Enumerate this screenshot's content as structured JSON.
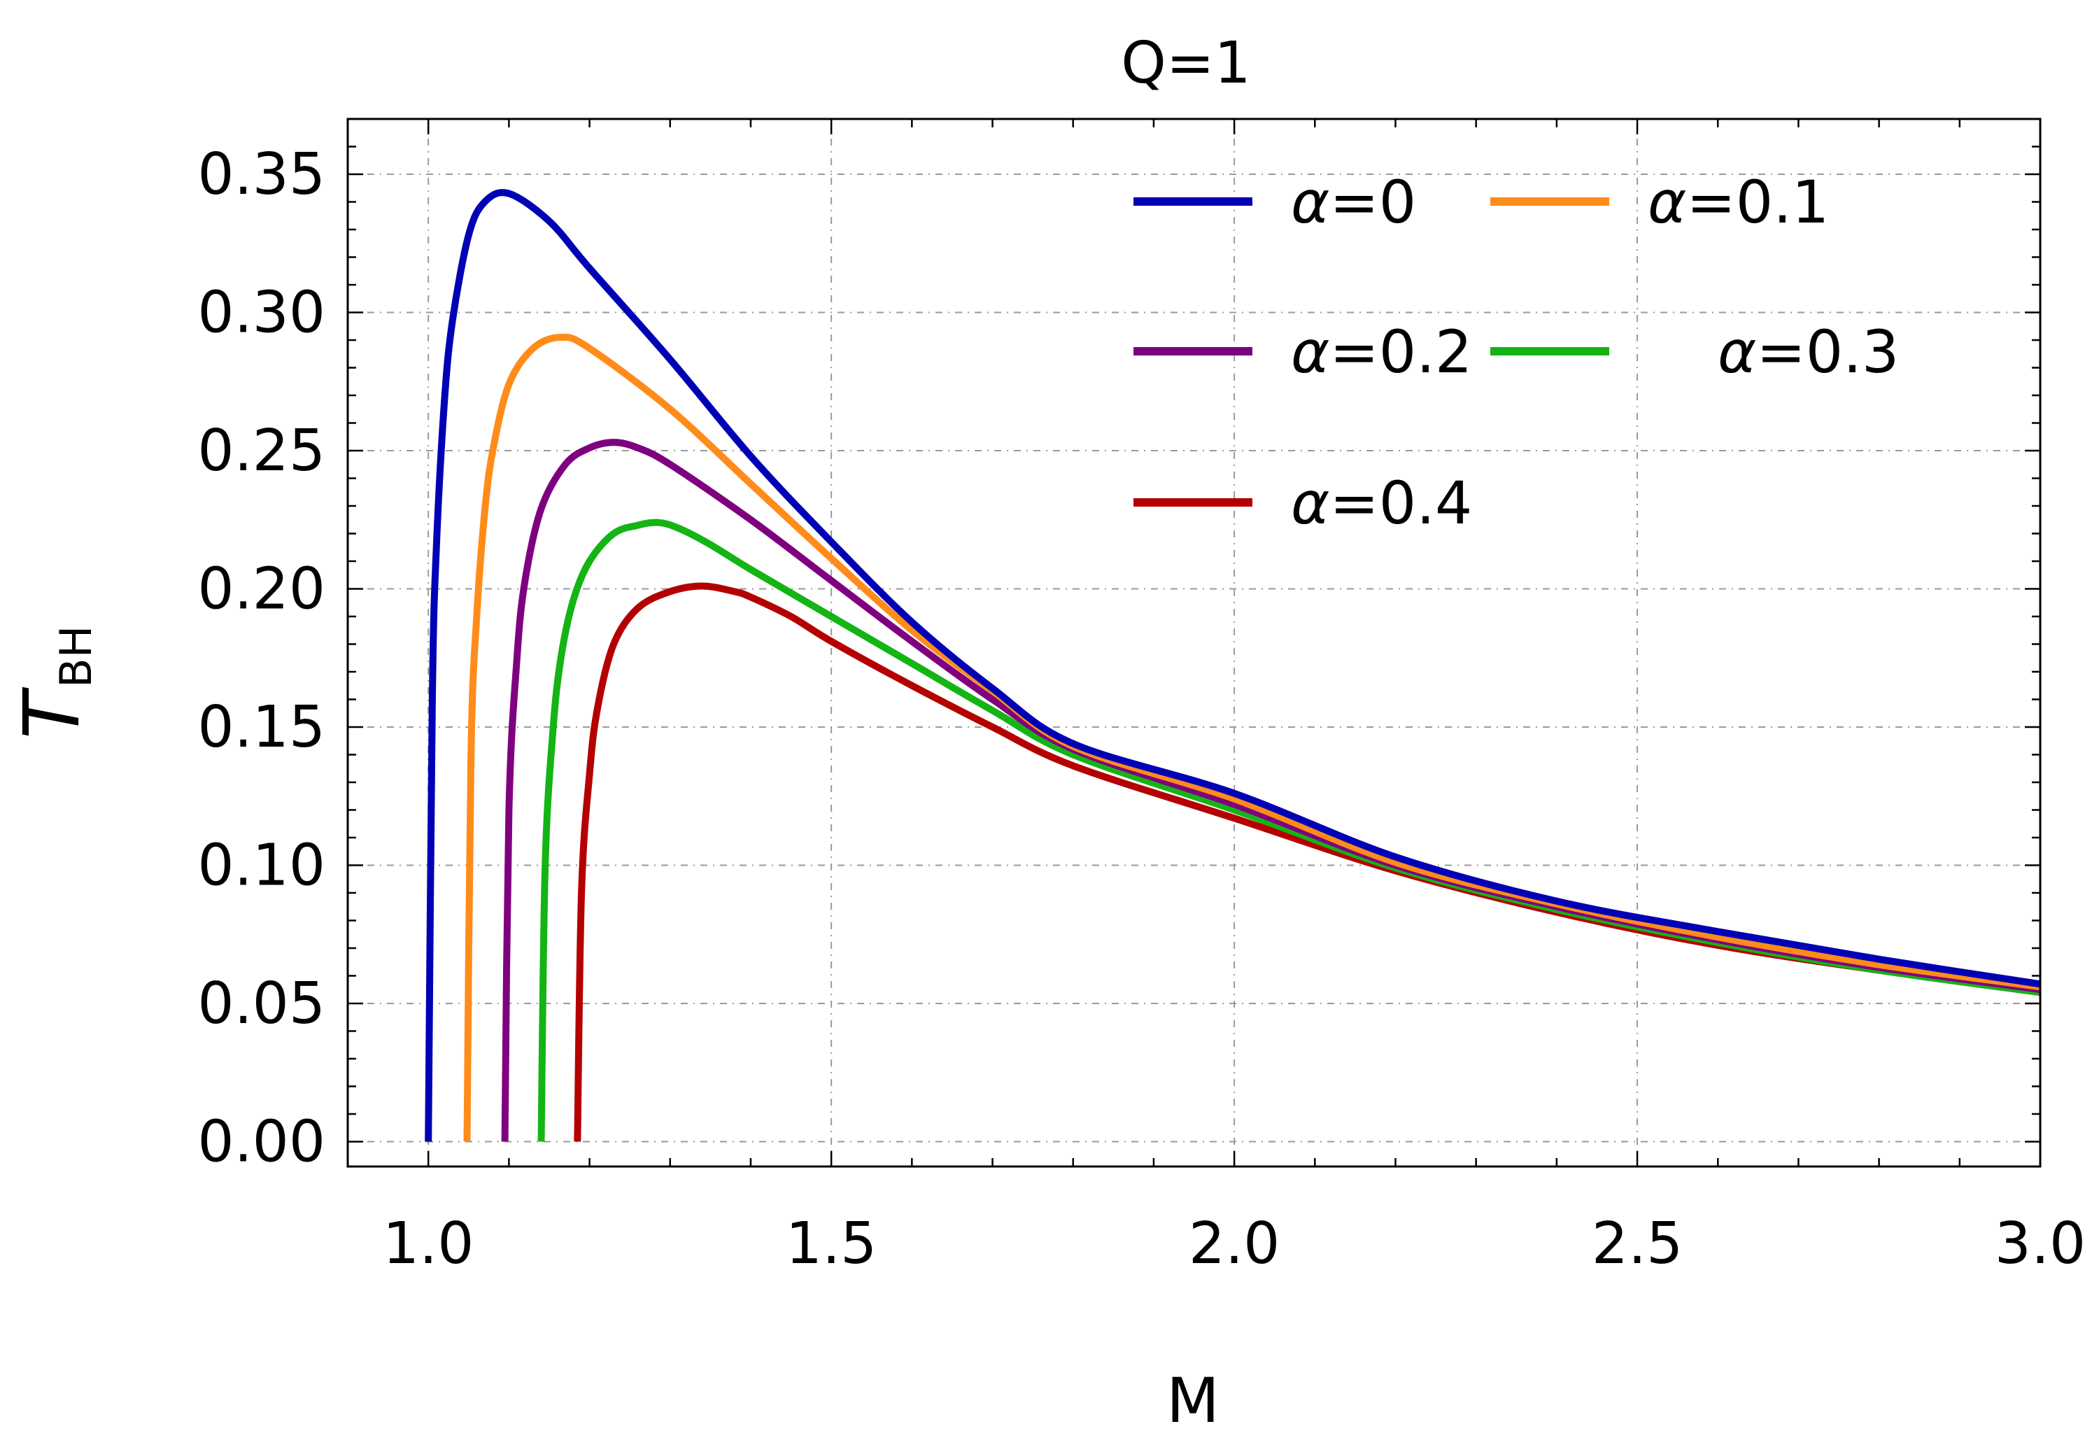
{
  "chart_data": {
    "type": "line",
    "title": "Q=1",
    "xlabel": "M",
    "ylabel": {
      "main": "T",
      "sub": "BH"
    },
    "xlim": [
      0.9,
      3.0
    ],
    "ylim": [
      -0.009,
      0.37
    ],
    "x_ticks": [
      "1.0",
      "1.5",
      "2.0",
      "2.5",
      "3.0"
    ],
    "y_ticks": [
      "0.00",
      "0.05",
      "0.10",
      "0.15",
      "0.20",
      "0.25",
      "0.30",
      "0.35"
    ],
    "grid": true,
    "legend_position": "top-right",
    "series": [
      {
        "name": "α=0",
        "greek": "α",
        "param": "=0",
        "color": "#0000b4",
        "x": [
          1.0,
          1.005,
          1.01,
          1.02,
          1.03,
          1.05,
          1.07,
          1.1,
          1.15,
          1.2,
          1.3,
          1.4,
          1.5,
          1.6,
          1.7,
          1.8,
          2.0,
          2.2,
          2.4,
          2.6,
          2.8,
          3.0
        ],
        "y": [
          0.0,
          0.16,
          0.215,
          0.268,
          0.297,
          0.328,
          0.34,
          0.343,
          0.333,
          0.316,
          0.283,
          0.248,
          0.217,
          0.188,
          0.164,
          0.144,
          0.126,
          0.103,
          0.087,
          0.076,
          0.066,
          0.057
        ]
      },
      {
        "name": "α=0.1",
        "greek": "α",
        "param": "=0.1",
        "color": "#ff8c1a",
        "x": [
          1.048,
          1.053,
          1.06,
          1.07,
          1.08,
          1.1,
          1.13,
          1.165,
          1.2,
          1.3,
          1.4,
          1.5,
          1.6,
          1.7,
          1.8,
          2.0,
          2.2,
          2.4,
          2.6,
          2.8,
          3.0
        ],
        "y": [
          0.0,
          0.14,
          0.19,
          0.228,
          0.25,
          0.274,
          0.287,
          0.291,
          0.287,
          0.265,
          0.238,
          0.211,
          0.185,
          0.163,
          0.143,
          0.124,
          0.101,
          0.086,
          0.074,
          0.064,
          0.056
        ]
      },
      {
        "name": "α=0.2",
        "greek": "α",
        "param": "=0.2",
        "color": "#7f007f",
        "x": [
          1.095,
          1.1,
          1.11,
          1.12,
          1.14,
          1.17,
          1.2,
          1.23,
          1.26,
          1.3,
          1.4,
          1.5,
          1.6,
          1.7,
          1.8,
          2.0,
          2.2,
          2.4,
          2.6,
          2.8,
          3.0
        ],
        "y": [
          0.0,
          0.12,
          0.175,
          0.203,
          0.229,
          0.245,
          0.251,
          0.253,
          0.251,
          0.245,
          0.225,
          0.203,
          0.181,
          0.16,
          0.142,
          0.122,
          0.1,
          0.085,
          0.073,
          0.063,
          0.055
        ]
      },
      {
        "name": "α=0.3",
        "greek": "α",
        "param": "=0.3",
        "color": "#14b414",
        "x": [
          1.14,
          1.145,
          1.155,
          1.165,
          1.18,
          1.2,
          1.23,
          1.26,
          1.285,
          1.31,
          1.35,
          1.4,
          1.5,
          1.6,
          1.7,
          1.8,
          2.0,
          2.2,
          2.4,
          2.6,
          2.8,
          3.0
        ],
        "y": [
          0.0,
          0.1,
          0.15,
          0.176,
          0.196,
          0.21,
          0.22,
          0.223,
          0.224,
          0.222,
          0.216,
          0.207,
          0.19,
          0.173,
          0.156,
          0.14,
          0.12,
          0.099,
          0.084,
          0.072,
          0.062,
          0.054
        ]
      },
      {
        "name": "α=0.4",
        "greek": "α",
        "param": "=0.4",
        "color": "#b40000",
        "x": [
          1.185,
          1.19,
          1.2,
          1.21,
          1.23,
          1.26,
          1.3,
          1.34,
          1.38,
          1.4,
          1.45,
          1.5,
          1.6,
          1.7,
          1.8,
          2.0,
          2.2,
          2.4,
          2.6,
          2.8,
          3.0
        ],
        "y": [
          0.0,
          0.09,
          0.133,
          0.157,
          0.18,
          0.193,
          0.199,
          0.201,
          0.199,
          0.197,
          0.19,
          0.181,
          0.165,
          0.15,
          0.136,
          0.117,
          0.098,
          0.083,
          0.071,
          0.062,
          0.054
        ]
      }
    ]
  }
}
